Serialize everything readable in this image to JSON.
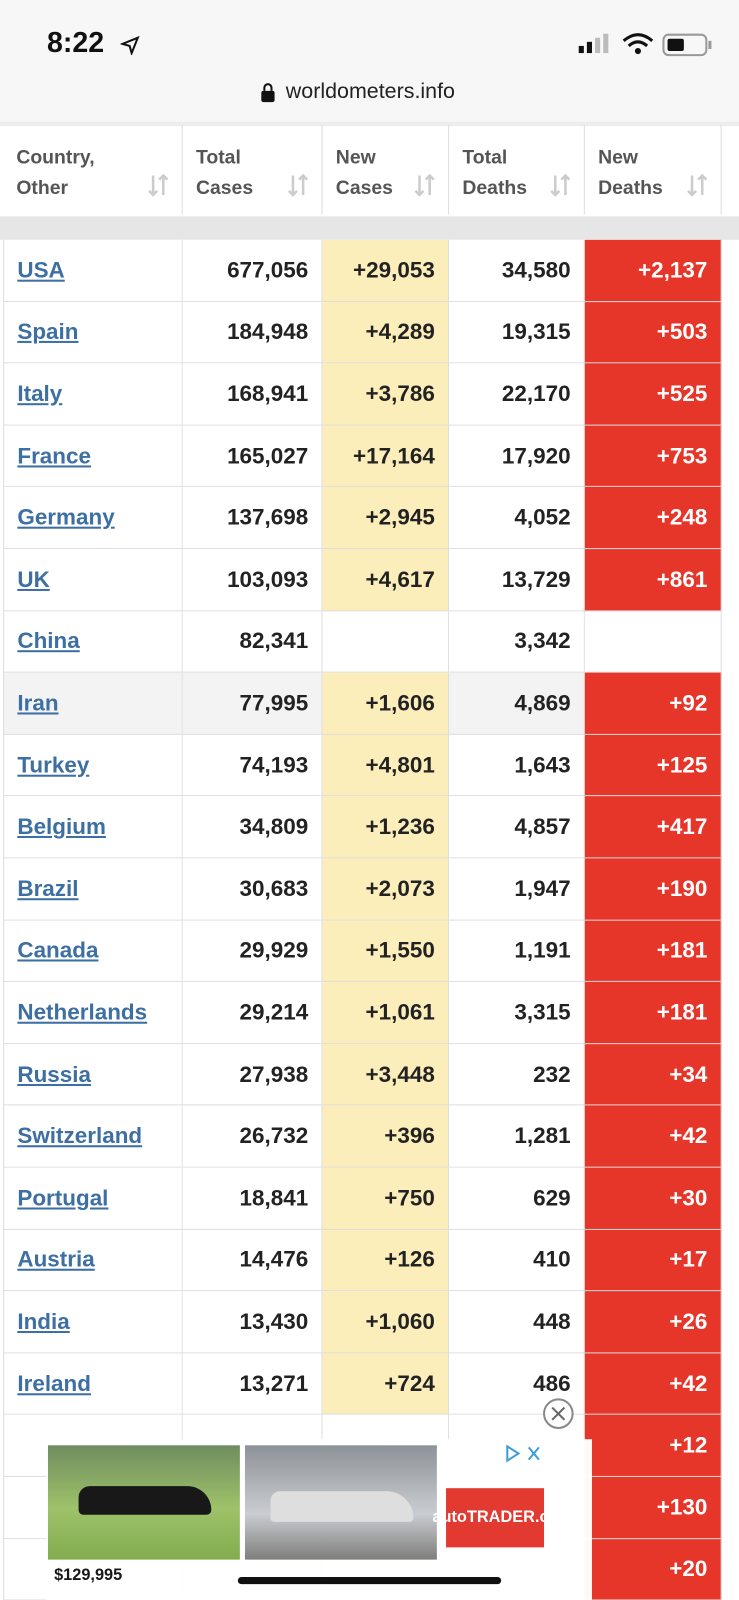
{
  "status": {
    "time": "8:22"
  },
  "browser": {
    "url": "worldometers.info"
  },
  "table": {
    "headers": [
      [
        "Country,",
        "Other"
      ],
      [
        "Total",
        "Cases"
      ],
      [
        "New",
        "Cases"
      ],
      [
        "Total",
        "Deaths"
      ],
      [
        "New",
        "Deaths"
      ]
    ],
    "rows": [
      [
        "USA",
        "677,056",
        "+29,053",
        "34,580",
        "+2,137"
      ],
      [
        "Spain",
        "184,948",
        "+4,289",
        "19,315",
        "+503"
      ],
      [
        "Italy",
        "168,941",
        "+3,786",
        "22,170",
        "+525"
      ],
      [
        "France",
        "165,027",
        "+17,164",
        "17,920",
        "+753"
      ],
      [
        "Germany",
        "137,698",
        "+2,945",
        "4,052",
        "+248"
      ],
      [
        "UK",
        "103,093",
        "+4,617",
        "13,729",
        "+861"
      ],
      [
        "China",
        "82,341",
        null,
        "3,342",
        null
      ],
      [
        "Iran",
        "77,995",
        "+1,606",
        "4,869",
        "+92"
      ],
      [
        "Turkey",
        "74,193",
        "+4,801",
        "1,643",
        "+125"
      ],
      [
        "Belgium",
        "34,809",
        "+1,236",
        "4,857",
        "+417"
      ],
      [
        "Brazil",
        "30,683",
        "+2,073",
        "1,947",
        "+190"
      ],
      [
        "Canada",
        "29,929",
        "+1,550",
        "1,191",
        "+181"
      ],
      [
        "Netherlands",
        "29,214",
        "+1,061",
        "3,315",
        "+181"
      ],
      [
        "Russia",
        "27,938",
        "+3,448",
        "232",
        "+34"
      ],
      [
        "Switzerland",
        "26,732",
        "+396",
        "1,281",
        "+42"
      ],
      [
        "Portugal",
        "18,841",
        "+750",
        "629",
        "+30"
      ],
      [
        "Austria",
        "14,476",
        "+126",
        "410",
        "+17"
      ],
      [
        "India",
        "13,430",
        "+1,060",
        "448",
        "+26"
      ],
      [
        "Ireland",
        "13,271",
        "+724",
        "486",
        "+42"
      ],
      [
        null,
        null,
        null,
        null,
        "+12"
      ],
      [
        null,
        null,
        null,
        null,
        "+130"
      ],
      [
        null,
        null,
        null,
        null,
        "+20"
      ]
    ]
  },
  "ad": {
    "price": "$129,995",
    "brand": "autoTRADER.ca"
  }
}
